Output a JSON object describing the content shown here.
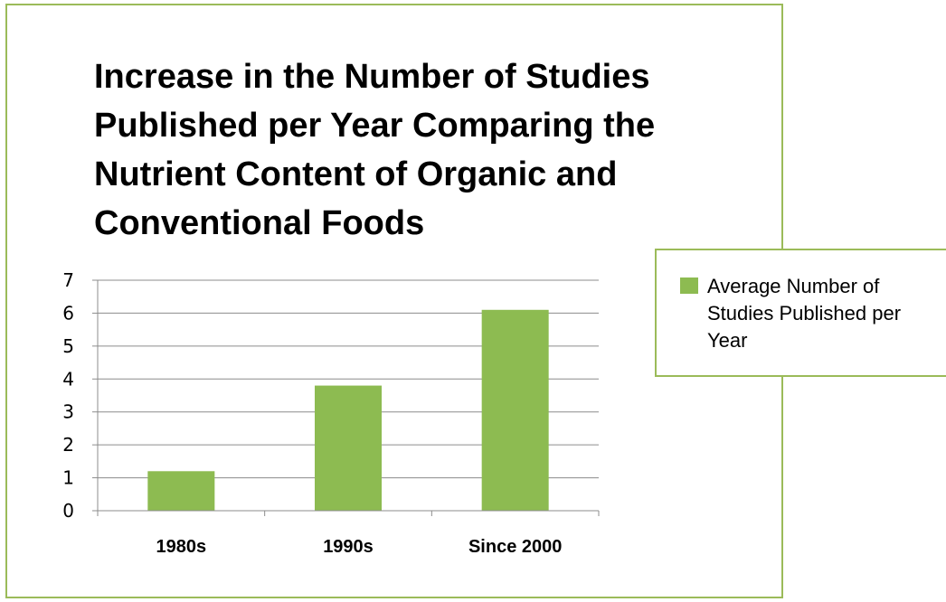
{
  "chart_data": {
    "type": "bar",
    "title": "Increase in the Number of Studies Published per Year Comparing the Nutrient Content of Organic and Conventional Foods",
    "categories": [
      "1980s",
      "1990s",
      "Since 2000"
    ],
    "series": [
      {
        "name": "Average Number of Studies Published per Year",
        "values": [
          1.2,
          3.8,
          6.1
        ]
      }
    ],
    "ylim": [
      0,
      7
    ],
    "yticks": [
      "0",
      "1",
      "2",
      "3",
      "4",
      "5",
      "6",
      "7"
    ],
    "grid": true,
    "legend_position": "right",
    "colors": {
      "bar": "#8dbb51",
      "gridline": "#8c8c8c",
      "frame": "#9bbb59"
    }
  }
}
